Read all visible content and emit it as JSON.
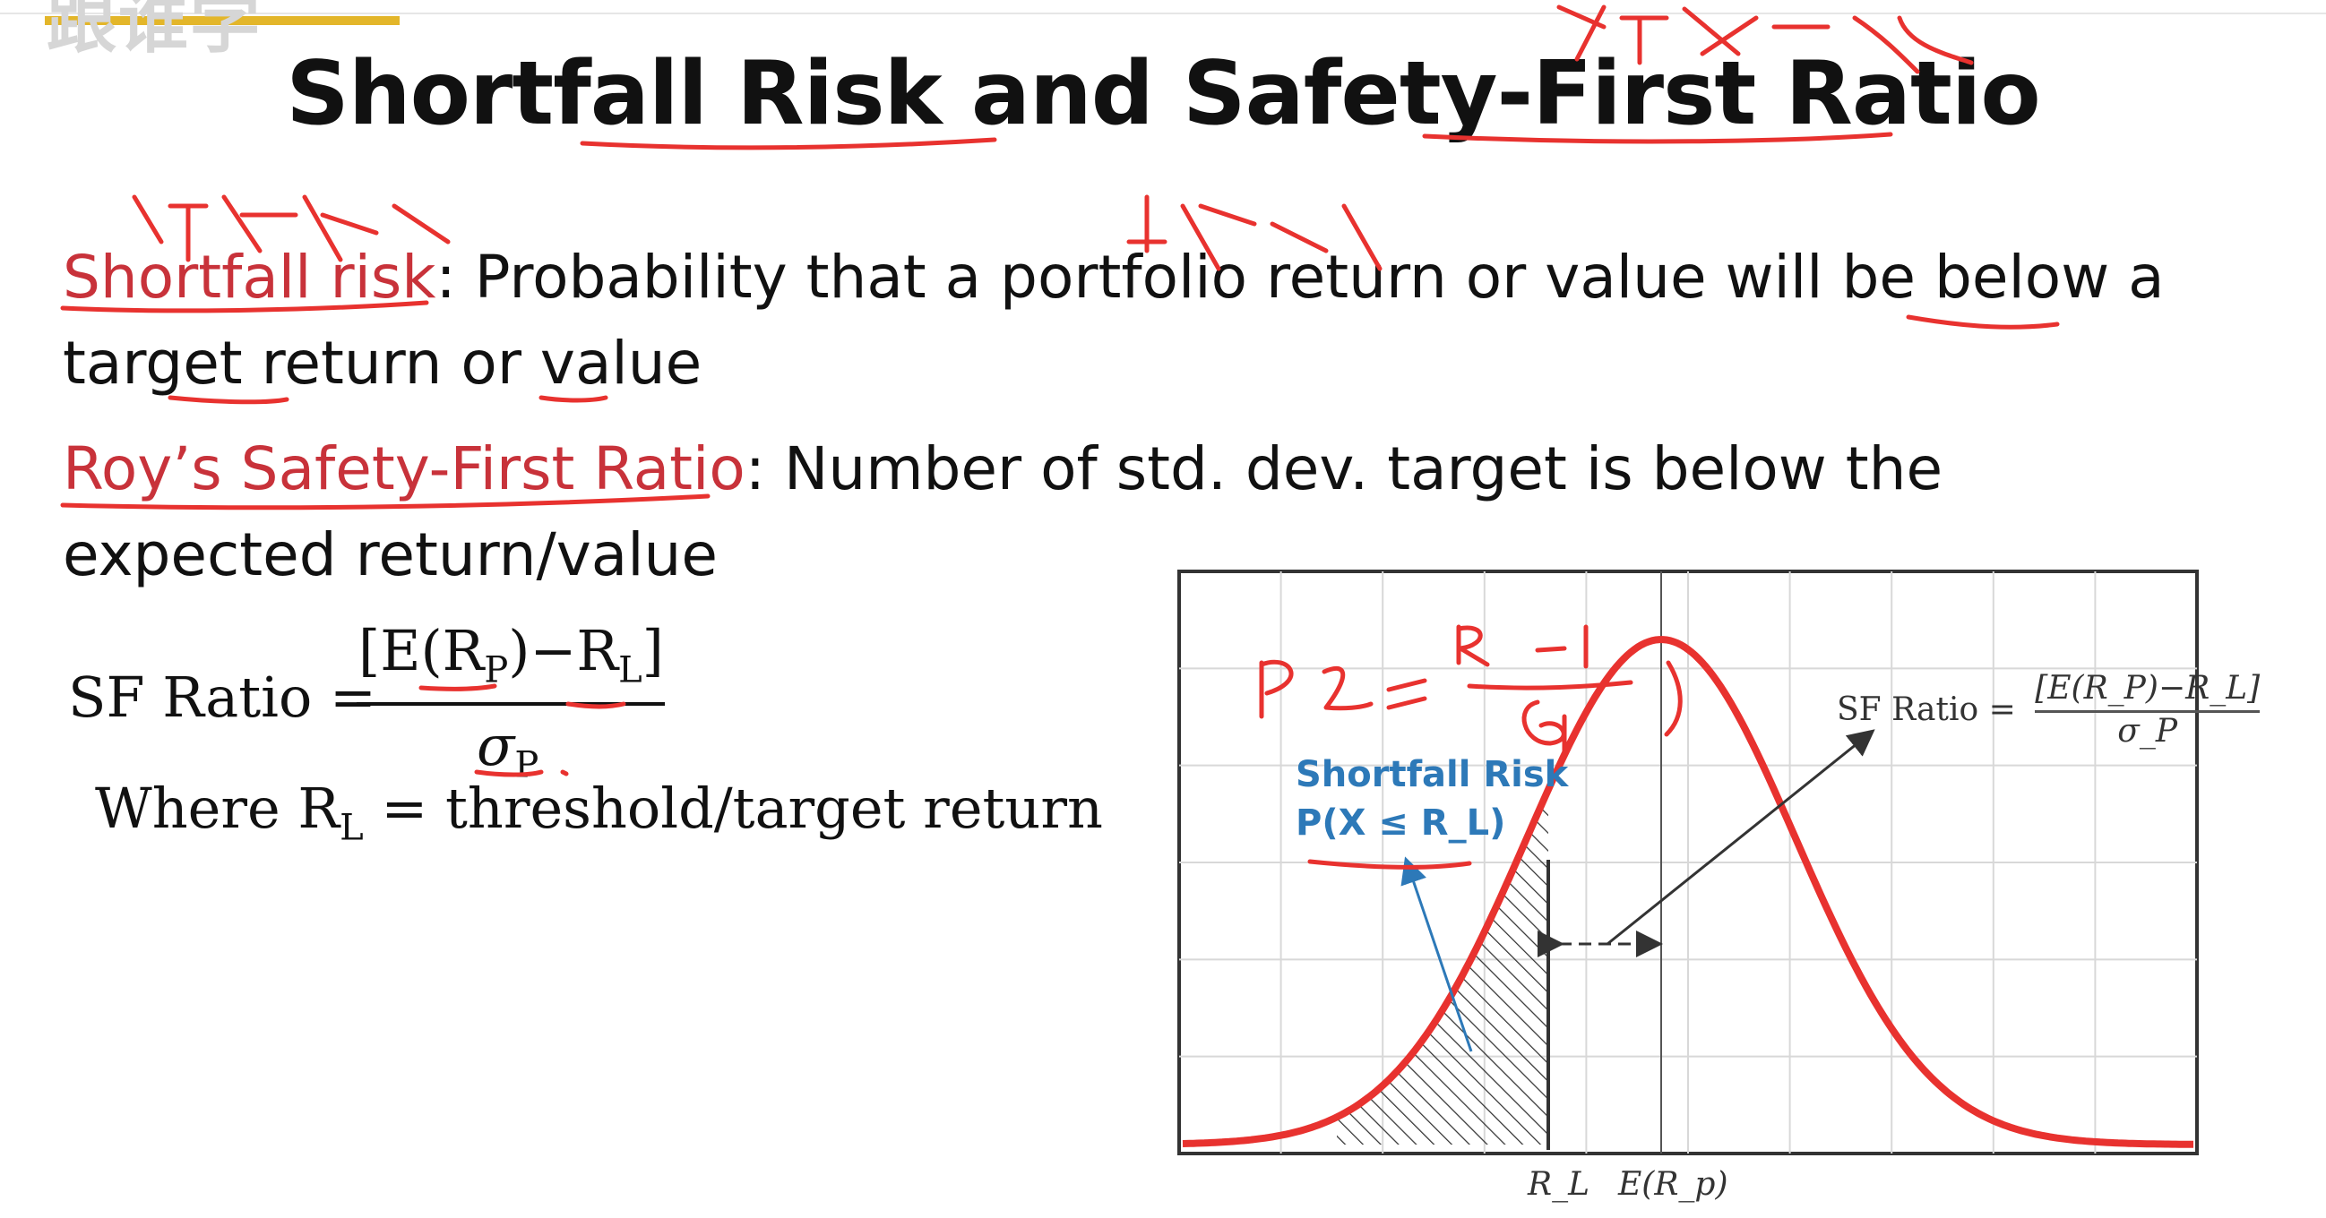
{
  "header": {
    "logo_text": "跟谁学"
  },
  "slide": {
    "title": "Shortfall Risk and Safety-First Ratio",
    "shortfall": {
      "term": "Shortfall risk",
      "colon": ":",
      "definition": " Probability that a portfolio return or value will be below a target return or value"
    },
    "roy": {
      "term": "Roy’s Safety-First Ratio",
      "colon": ":",
      "definition": " Number of std. dev. target is below the expected return/value"
    },
    "formula": {
      "lhs": "SF Ratio =",
      "numerator_open": "[E(R",
      "numerator_sub_p": "P",
      "numerator_mid": ")−R",
      "numerator_sub_l": "L",
      "numerator_close": "]",
      "denominator": "σ",
      "denominator_sub": "P",
      "where_prefix": "Where R",
      "where_sub": "L",
      "where_suffix": " = threshold/target return"
    }
  },
  "chart_data": {
    "type": "area",
    "title": "",
    "xlabel": "",
    "ylabel": "",
    "x_ticks": [
      "R_L",
      "E(R_p)"
    ],
    "grid": true,
    "series": [
      {
        "name": "",
        "distribution": "normal",
        "mean": "E(R_p)",
        "color": "#e8322f"
      }
    ],
    "shaded_region": "x ≤ R_L",
    "annotations": [
      {
        "text_line1": "Shortfall Risk",
        "text_line2": "P(X ≤ R_L)",
        "color": "#2d79b8"
      },
      {
        "text": "SF Ratio = [E(R_P)−R_L] / σ_P",
        "color": "#333333"
      }
    ]
  },
  "chart_labels": {
    "inset_lhs": "SF Ratio =",
    "inset_num": "[E(R_P)−R_L]",
    "inset_den": "σ_P",
    "shortfall_title": "Shortfall Risk",
    "shortfall_expr": "P(X ≤ R_L)",
    "tick_rl": "R_L",
    "tick_erp": "E(R_p)"
  },
  "handwriting": {
    "color": "#e8322f",
    "notes": [
      "安全第一比率",
      "短缺风险",
      "止损线",
      "P(Z ≤ (R_L − E R_P) / σ_P)"
    ]
  }
}
